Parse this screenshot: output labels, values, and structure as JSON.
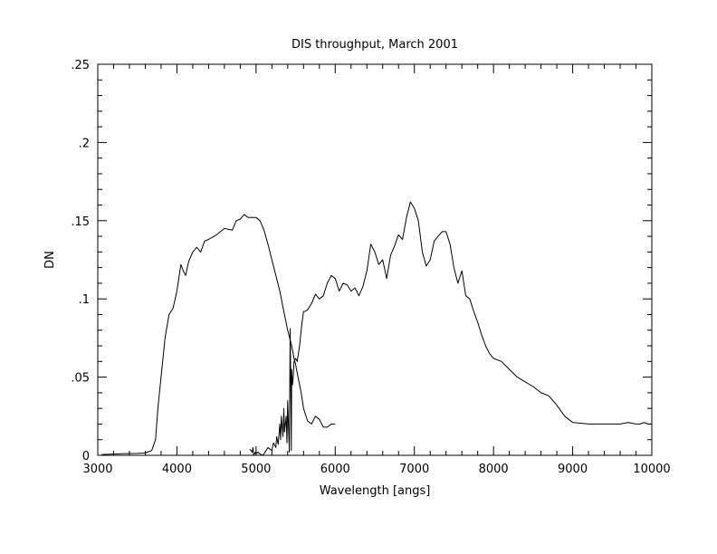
{
  "chart_data": {
    "type": "line",
    "title": "DIS throughput, March 2001",
    "xlabel": "Wavelength [angs]",
    "ylabel": "DN",
    "xlim": [
      3000,
      10000
    ],
    "ylim": [
      0,
      0.25
    ],
    "x_ticks": [
      3000,
      4000,
      5000,
      6000,
      7000,
      8000,
      9000,
      10000
    ],
    "x_tick_labels": [
      "3000",
      "4000",
      "5000",
      "6000",
      "7000",
      "8000",
      "9000",
      "10000"
    ],
    "y_ticks": [
      0,
      0.05,
      0.1,
      0.15,
      0.2,
      0.25
    ],
    "y_tick_labels": [
      "0",
      ".05",
      ".1",
      ".15",
      ".2",
      ".25"
    ],
    "grid": false,
    "series": [
      {
        "color": "#000000",
        "x": [
          3050,
          3300,
          3500,
          3600,
          3680,
          3730,
          3760,
          3800,
          3850,
          3900,
          3950,
          4000,
          4050,
          4080,
          4110,
          4150,
          4200,
          4250,
          4300,
          4350,
          4400,
          4500,
          4600,
          4700,
          4750,
          4800,
          4850,
          4900,
          5000,
          5050,
          5100,
          5150,
          5200,
          5250,
          5300,
          5350,
          5400,
          5450,
          5480,
          5500,
          5530,
          5570,
          5600,
          5650,
          5700,
          5750,
          5800,
          5850,
          5900,
          5950,
          6000
        ],
        "y": [
          0.0005,
          0.001,
          0.0012,
          0.0015,
          0.003,
          0.01,
          0.03,
          0.05,
          0.075,
          0.09,
          0.094,
          0.105,
          0.122,
          0.118,
          0.115,
          0.124,
          0.13,
          0.133,
          0.13,
          0.137,
          0.138,
          0.141,
          0.145,
          0.144,
          0.15,
          0.151,
          0.154,
          0.152,
          0.152,
          0.15,
          0.144,
          0.135,
          0.125,
          0.115,
          0.105,
          0.092,
          0.08,
          0.07,
          0.062,
          0.058,
          0.05,
          0.04,
          0.03,
          0.022,
          0.02,
          0.025,
          0.023,
          0.018,
          0.018,
          0.02,
          0.02
        ]
      },
      {
        "color": "#000000",
        "x": [
          4920,
          4950,
          4960,
          4970,
          4990,
          5000,
          5020,
          5050,
          5080,
          5100,
          5150,
          5200,
          5220,
          5250,
          5260,
          5280,
          5300,
          5310,
          5320,
          5340,
          5350,
          5360,
          5380,
          5390,
          5400,
          5420,
          5430,
          5440,
          5445,
          5450,
          5460,
          5470,
          5480,
          5500,
          5520,
          5550,
          5580,
          5600,
          5620,
          5650,
          5700,
          5750,
          5800,
          5850,
          5900,
          5950,
          6000,
          6050,
          6100,
          6150,
          6200,
          6250,
          6300,
          6350,
          6400,
          6450,
          6500,
          6550,
          6600,
          6650,
          6700,
          6750,
          6800,
          6850,
          6900,
          6950,
          7000,
          7050,
          7100,
          7150,
          7200,
          7250,
          7300,
          7350,
          7400,
          7450,
          7500,
          7550,
          7600,
          7650,
          7700,
          7750,
          7800,
          7850,
          7900,
          7950,
          8000,
          8100,
          8200,
          8300,
          8400,
          8500,
          8600,
          8700,
          8800,
          8900,
          9000,
          9200,
          9400,
          9600,
          9700,
          9800,
          9850,
          9900,
          9950,
          10000
        ],
        "y": [
          0.004,
          0.002,
          0.005,
          0.0,
          0.002,
          0.001,
          0.002,
          0.001,
          0.0,
          0.001,
          0.005,
          0.003,
          0.008,
          0.005,
          0.012,
          0.007,
          0.02,
          0.01,
          0.025,
          0.012,
          0.03,
          0.015,
          0.025,
          0.008,
          0.035,
          0.002,
          0.081,
          0.04,
          0.003,
          0.055,
          0.045,
          0.05,
          0.06,
          0.062,
          0.06,
          0.07,
          0.085,
          0.092,
          0.092,
          0.093,
          0.097,
          0.103,
          0.1,
          0.102,
          0.11,
          0.115,
          0.113,
          0.105,
          0.11,
          0.109,
          0.105,
          0.107,
          0.102,
          0.108,
          0.118,
          0.135,
          0.13,
          0.122,
          0.125,
          0.113,
          0.128,
          0.134,
          0.141,
          0.138,
          0.152,
          0.162,
          0.158,
          0.15,
          0.13,
          0.121,
          0.125,
          0.137,
          0.14,
          0.143,
          0.143,
          0.135,
          0.12,
          0.11,
          0.118,
          0.102,
          0.1,
          0.092,
          0.085,
          0.077,
          0.07,
          0.065,
          0.062,
          0.06,
          0.055,
          0.05,
          0.047,
          0.044,
          0.04,
          0.038,
          0.032,
          0.025,
          0.021,
          0.02,
          0.02,
          0.02,
          0.021,
          0.02,
          0.02,
          0.021,
          0.02,
          0.02
        ]
      }
    ]
  }
}
